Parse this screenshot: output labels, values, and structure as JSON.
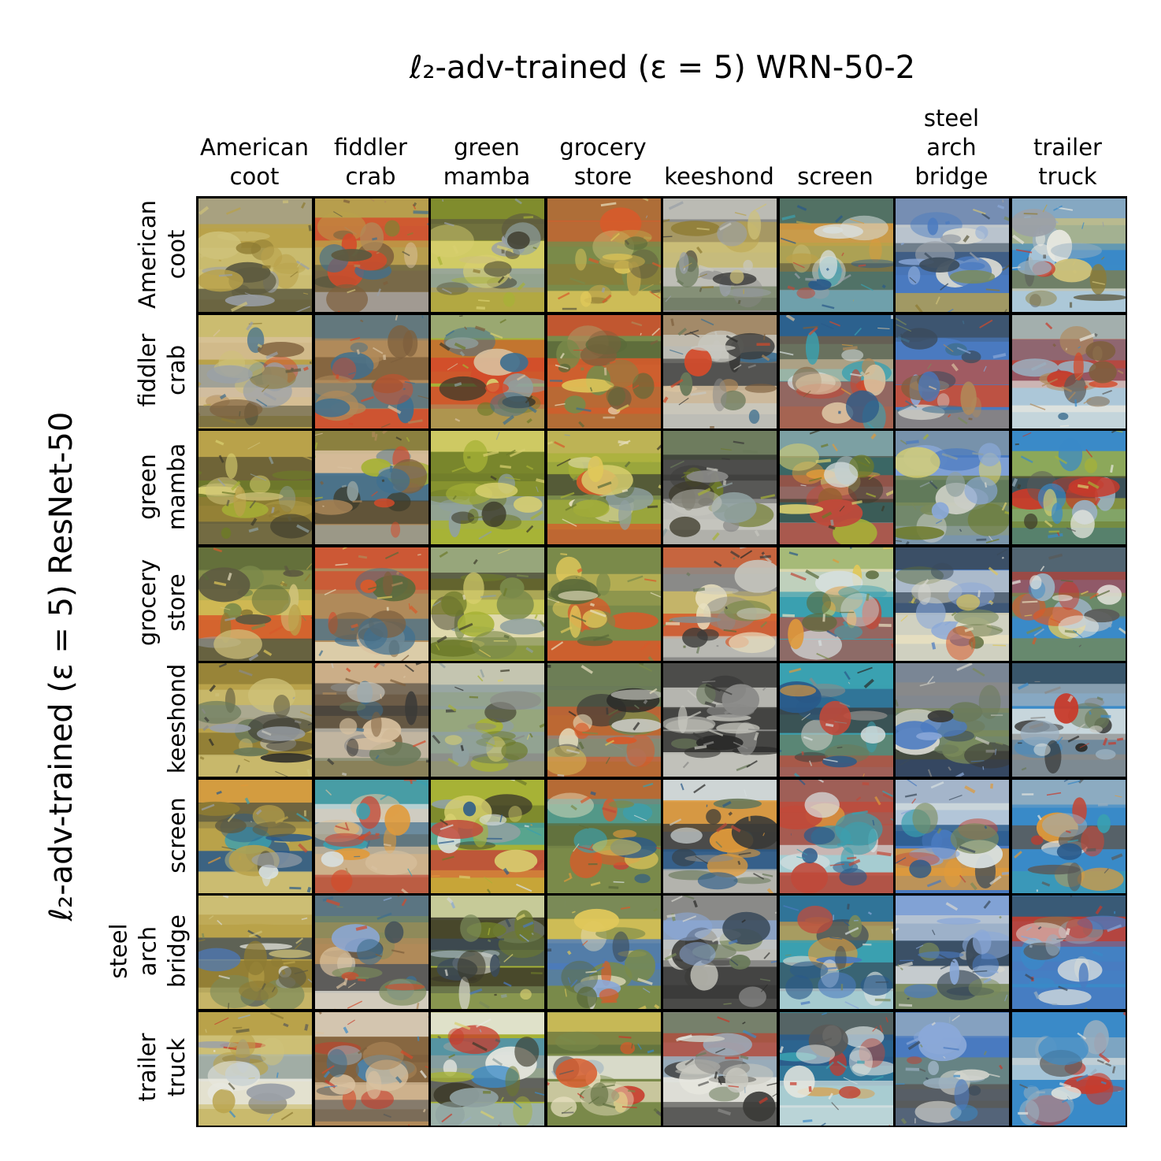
{
  "figure": {
    "title": "ℓ₂-adv-trained (ε = 5) WRN-50-2",
    "y_axis_label": "ℓ₂-adv-trained (ε = 5) ResNet-50"
  },
  "columns": [
    "American\ncoot",
    "fiddler\ncrab",
    "green\nmamba",
    "grocery\nstore",
    "keeshond",
    "screen",
    "steel\narch\nbridge",
    "trailer\ntruck"
  ],
  "rows": [
    "American\ncoot",
    "fiddler\ncrab",
    "green\nmamba",
    "grocery\nstore",
    "keeshond",
    "screen",
    "steel\narch\nbridge",
    "trailer\ntruck"
  ],
  "palettes": [
    [
      "#b9a24a",
      "#8e7b33",
      "#cfc27a",
      "#5d5a40",
      "#9aa0a8"
    ],
    [
      "#b08a5a",
      "#7e5f3c",
      "#d9c2a0",
      "#3f6f8f",
      "#d44a2a"
    ],
    [
      "#a7b236",
      "#6d7a2a",
      "#d9d070",
      "#3c3a2a",
      "#8fa0a0"
    ],
    [
      "#7a8a4a",
      "#d85a2a",
      "#e0c85a",
      "#5a6a3a",
      "#e8e0c0"
    ],
    [
      "#8a8a88",
      "#3a3a38",
      "#c8c8c0",
      "#6a7a5a",
      "#2a2a28"
    ],
    [
      "#3aa0b0",
      "#2a5a8a",
      "#d8e0e0",
      "#c04a3a",
      "#e09a3a"
    ],
    [
      "#4a7ac0",
      "#8aa8d8",
      "#3a4a5a",
      "#d8d8d0",
      "#7a8a5a"
    ],
    [
      "#3a8ac8",
      "#e8e8e0",
      "#c83a2a",
      "#5a5a58",
      "#9ab0c0"
    ]
  ]
}
